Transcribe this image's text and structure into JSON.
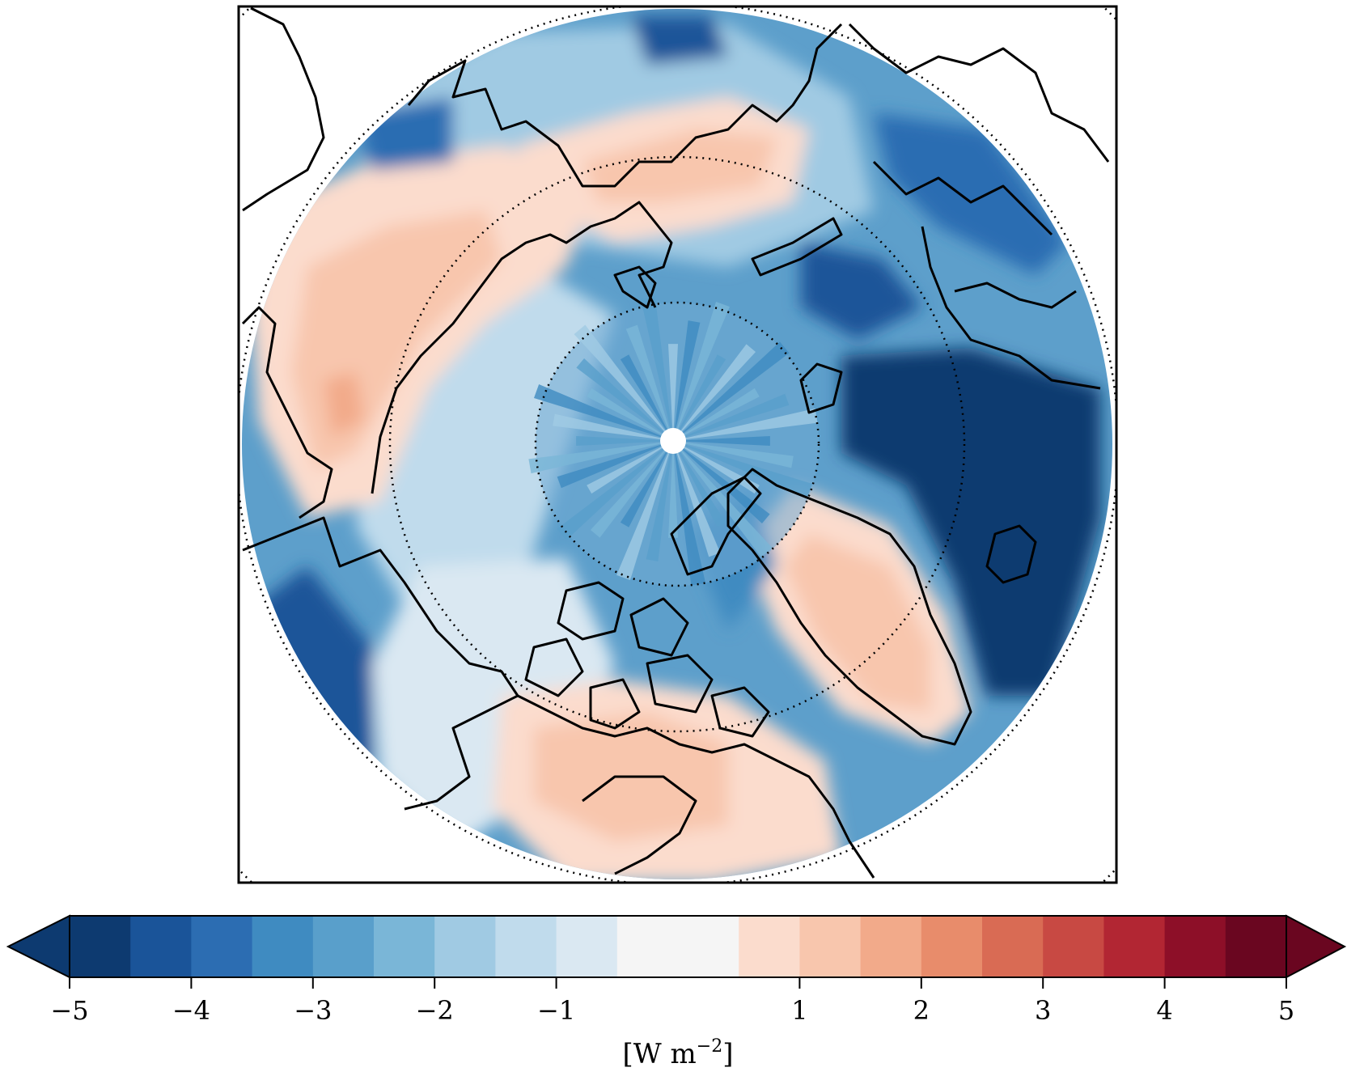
{
  "map": {
    "projection": "north polar stereographic",
    "latitude_circles_deg": [
      80,
      70,
      60,
      50
    ],
    "colormap": "RdBu_r"
  },
  "colorbar": {
    "min": -5,
    "max": 5,
    "extend": "both",
    "levels": [
      -5,
      -4.5,
      -4,
      -3.5,
      -3,
      -2.5,
      -2,
      -1.5,
      -1,
      -0.5,
      0.5,
      1,
      1.5,
      2,
      2.5,
      3,
      3.5,
      4,
      4.5,
      5
    ],
    "colors": [
      "#0d3a70",
      "#1a5499",
      "#2c6db2",
      "#3f8bc1",
      "#599fcb",
      "#7ab6d7",
      "#a0cae3",
      "#c0dbec",
      "#dae8f2",
      "#f5f5f5",
      "#fbdccd",
      "#f8c6ad",
      "#f2aa8a",
      "#e88c6b",
      "#d96b54",
      "#c84943",
      "#b22633",
      "#8d0f28",
      "#6a0620"
    ],
    "tick_values": [
      -5,
      -4,
      -3,
      -2,
      -1,
      1,
      2,
      3,
      4,
      5
    ],
    "tick_labels": [
      "−5",
      "−4",
      "−3",
      "−2",
      "−1",
      "1",
      "2",
      "3",
      "4",
      "5"
    ],
    "unit_label": "[W m",
    "unit_exponent": "−2",
    "unit_close": "]"
  }
}
